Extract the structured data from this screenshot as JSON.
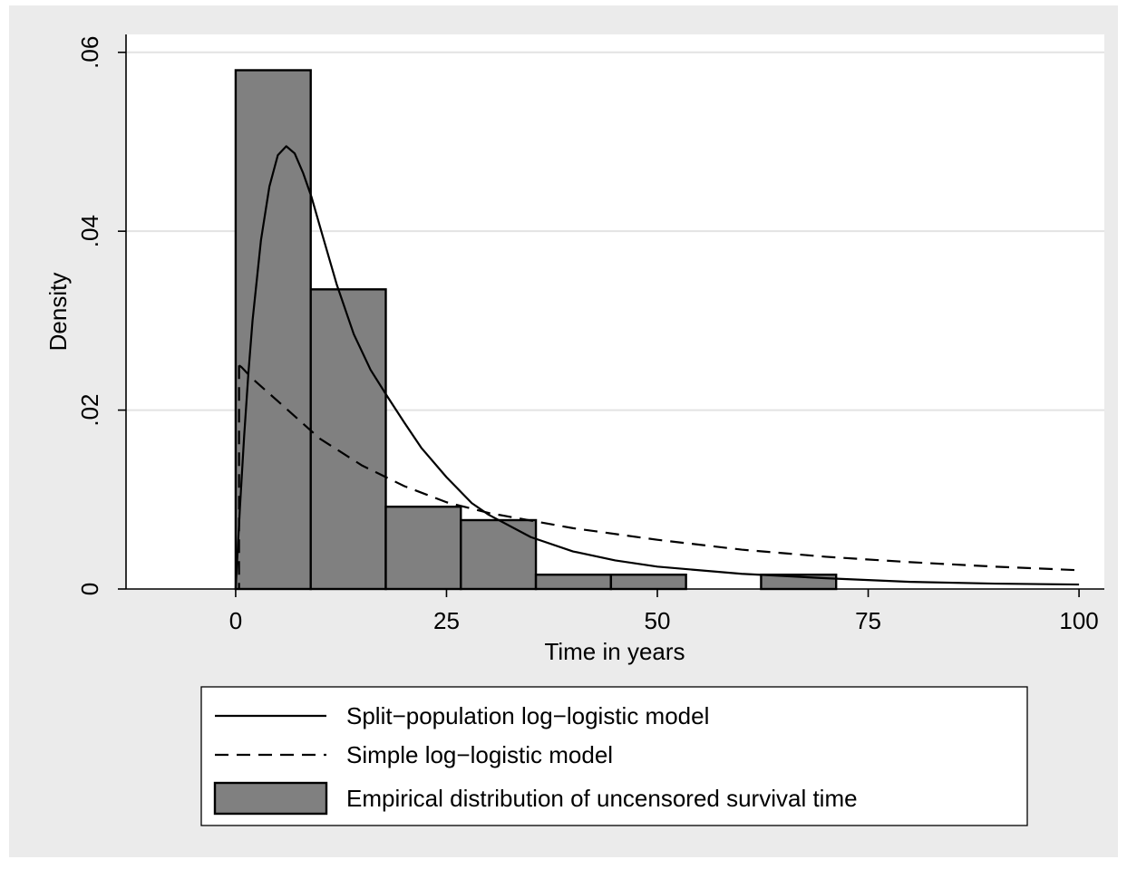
{
  "chart_data": {
    "type": "bar",
    "xlabel": "Time in years",
    "ylabel": "Density",
    "xlim": [
      -13,
      103
    ],
    "ylim": [
      0,
      0.062
    ],
    "x_ticks": [
      {
        "value": 0,
        "label": "0"
      },
      {
        "value": 25,
        "label": "25"
      },
      {
        "value": 50,
        "label": "50"
      },
      {
        "value": 75,
        "label": "75"
      },
      {
        "value": 100,
        "label": "100"
      }
    ],
    "y_ticks": [
      {
        "value": 0,
        "label": "0"
      },
      {
        "value": 0.02,
        "label": ".02"
      },
      {
        "value": 0.04,
        "label": ".04"
      },
      {
        "value": 0.06,
        "label": ".06"
      }
    ],
    "grid": "horizontal",
    "legend_position": "bottom",
    "legend": [
      {
        "label": "Split−population log−logistic model",
        "style": "solid"
      },
      {
        "label": "Simple log−logistic model",
        "style": "dashed"
      },
      {
        "label": "Empirical distribution of uncensored survival time",
        "style": "bar"
      }
    ],
    "histogram": {
      "series_name": "Empirical distribution of uncensored survival time",
      "color": "#808080",
      "bins": [
        {
          "start": 0,
          "end": 8.9,
          "density": 0.058
        },
        {
          "start": 8.9,
          "end": 17.8,
          "density": 0.0335
        },
        {
          "start": 17.8,
          "end": 26.7,
          "density": 0.0092
        },
        {
          "start": 26.7,
          "end": 35.6,
          "density": 0.0077
        },
        {
          "start": 35.6,
          "end": 44.5,
          "density": 0.0016
        },
        {
          "start": 44.5,
          "end": 53.4,
          "density": 0.0016
        },
        {
          "start": 62.3,
          "end": 71.2,
          "density": 0.0016
        }
      ]
    },
    "series": [
      {
        "name": "Split−population log−logistic model",
        "type": "line",
        "style": "solid",
        "x": [
          0,
          0.5,
          1,
          1.5,
          2,
          3,
          4,
          5,
          6,
          7,
          8,
          9,
          10,
          12,
          14,
          16,
          18,
          20,
          22,
          25,
          28,
          30,
          35,
          40,
          45,
          50,
          60,
          70,
          80,
          90,
          100
        ],
        "y": [
          0,
          0.009,
          0.017,
          0.024,
          0.03,
          0.039,
          0.045,
          0.0485,
          0.0495,
          0.0487,
          0.0465,
          0.0438,
          0.0405,
          0.034,
          0.0285,
          0.0245,
          0.0215,
          0.0186,
          0.0158,
          0.0125,
          0.0096,
          0.0083,
          0.0058,
          0.0042,
          0.0032,
          0.0025,
          0.0017,
          0.0012,
          0.0008,
          0.0006,
          0.0005
        ]
      },
      {
        "name": "Simple log−logistic model",
        "type": "line",
        "style": "dashed",
        "x": [
          0.4,
          0.7,
          1,
          2,
          5,
          10,
          15,
          20,
          25,
          30,
          40,
          50,
          60,
          70,
          80,
          90,
          100
        ],
        "y": [
          0.025,
          0.0248,
          0.0245,
          0.0235,
          0.021,
          0.0168,
          0.0138,
          0.0115,
          0.0097,
          0.0085,
          0.0068,
          0.0055,
          0.0044,
          0.0036,
          0.003,
          0.0025,
          0.0021
        ]
      }
    ]
  }
}
